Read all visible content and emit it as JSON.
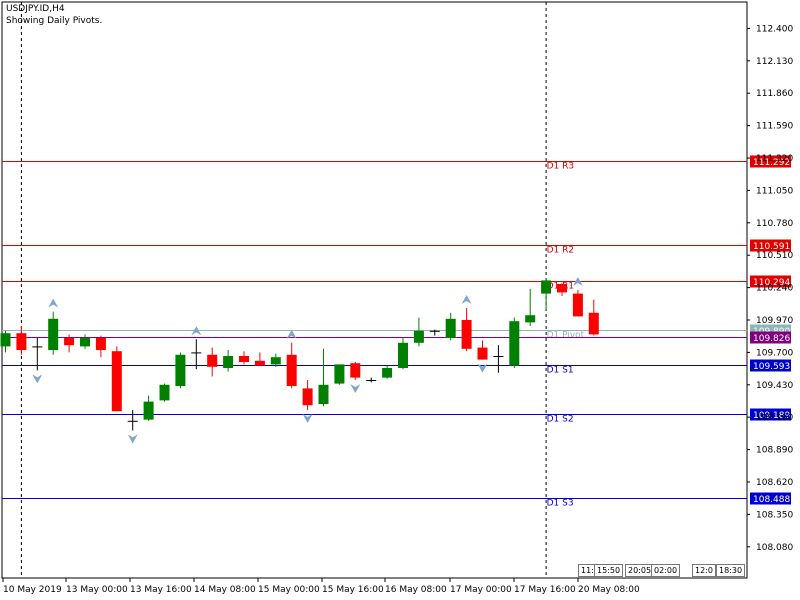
{
  "header": {
    "symbol": "USDJPY.ID,H4",
    "indicator": "Showing Daily Pivots."
  },
  "colors": {
    "bull": "#008000",
    "bear": "#ff0000",
    "resistance": "#e00000",
    "support": "#0000cc",
    "pivot": "#8fb5b5",
    "pivot2": "#800080",
    "arrow": "#7fa5c8"
  },
  "pivots": [
    {
      "name": "D1 R3",
      "value": 111.292,
      "label": "111.292",
      "kind": "resistance"
    },
    {
      "name": "D1 R2",
      "value": 110.591,
      "label": "110.591",
      "kind": "resistance"
    },
    {
      "name": "D1 R1",
      "value": 110.294,
      "label": "110.294",
      "kind": "resistance"
    },
    {
      "name": "D1 Pivot",
      "value": 109.89,
      "label": "109.890",
      "kind": "pivot"
    },
    {
      "name": "",
      "value": 109.826,
      "label": "109.826",
      "kind": "pivot2"
    },
    {
      "name": "D1 S1",
      "value": 109.593,
      "label": "109.593",
      "kind": "support"
    },
    {
      "name": "D1 S2",
      "value": 109.189,
      "label": "109.189",
      "kind": "support"
    },
    {
      "name": "D1 S3",
      "value": 108.488,
      "label": "108.488",
      "kind": "support"
    }
  ],
  "chart_data": {
    "type": "candlestick",
    "title": "USDJPY.ID,H4",
    "ylim": [
      107.82,
      112.62
    ],
    "yticks": [
      "112.400",
      "112.130",
      "111.860",
      "111.590",
      "111.320",
      "111.050",
      "110.780",
      "110.510",
      "110.240",
      "109.970",
      "109.700",
      "109.430",
      "109.160",
      "108.890",
      "108.620",
      "108.350",
      "108.080"
    ],
    "xticks": [
      "10 May 2019",
      "13 May 00:00",
      "13 May 16:00",
      "14 May 08:00",
      "15 May 00:00",
      "15 May 16:00",
      "16 May 08:00",
      "17 May 00:00",
      "17 May 16:00",
      "20 May 08:00"
    ],
    "candles": [
      {
        "o": 109.75,
        "h": 109.88,
        "l": 109.7,
        "c": 109.86
      },
      {
        "o": 109.86,
        "h": 109.92,
        "l": 109.68,
        "c": 109.72
      },
      {
        "o": 109.74,
        "h": 109.82,
        "l": 109.55,
        "c": 109.75
      },
      {
        "o": 109.72,
        "h": 110.04,
        "l": 109.68,
        "c": 109.98
      },
      {
        "o": 109.82,
        "h": 109.85,
        "l": 109.7,
        "c": 109.76
      },
      {
        "o": 109.75,
        "h": 109.85,
        "l": 109.73,
        "c": 109.82
      },
      {
        "o": 109.82,
        "h": 109.84,
        "l": 109.66,
        "c": 109.72
      },
      {
        "o": 109.71,
        "h": 109.75,
        "l": 109.22,
        "c": 109.21
      },
      {
        "o": 109.11,
        "h": 109.22,
        "l": 109.05,
        "c": 109.13
      },
      {
        "o": 109.14,
        "h": 109.34,
        "l": 109.13,
        "c": 109.29
      },
      {
        "o": 109.3,
        "h": 109.44,
        "l": 109.29,
        "c": 109.43
      },
      {
        "o": 109.42,
        "h": 109.7,
        "l": 109.4,
        "c": 109.68
      },
      {
        "o": 109.69,
        "h": 109.81,
        "l": 109.56,
        "c": 109.7
      },
      {
        "o": 109.68,
        "h": 109.74,
        "l": 109.5,
        "c": 109.58
      },
      {
        "o": 109.57,
        "h": 109.72,
        "l": 109.54,
        "c": 109.67
      },
      {
        "o": 109.67,
        "h": 109.71,
        "l": 109.6,
        "c": 109.62
      },
      {
        "o": 109.63,
        "h": 109.7,
        "l": 109.6,
        "c": 109.59
      },
      {
        "o": 109.6,
        "h": 109.69,
        "l": 109.58,
        "c": 109.66
      },
      {
        "o": 109.68,
        "h": 109.78,
        "l": 109.4,
        "c": 109.42
      },
      {
        "o": 109.4,
        "h": 109.47,
        "l": 109.22,
        "c": 109.26
      },
      {
        "o": 109.27,
        "h": 109.73,
        "l": 109.25,
        "c": 109.43
      },
      {
        "o": 109.44,
        "h": 109.6,
        "l": 109.43,
        "c": 109.6
      },
      {
        "o": 109.61,
        "h": 109.62,
        "l": 109.47,
        "c": 109.49
      },
      {
        "o": 109.46,
        "h": 109.49,
        "l": 109.45,
        "c": 109.47
      },
      {
        "o": 109.49,
        "h": 109.59,
        "l": 109.48,
        "c": 109.57
      },
      {
        "o": 109.57,
        "h": 109.82,
        "l": 109.56,
        "c": 109.78
      },
      {
        "o": 109.78,
        "h": 109.99,
        "l": 109.75,
        "c": 109.88
      },
      {
        "o": 109.86,
        "h": 109.89,
        "l": 109.84,
        "c": 109.88
      },
      {
        "o": 109.82,
        "h": 110.03,
        "l": 109.8,
        "c": 109.98
      },
      {
        "o": 109.97,
        "h": 110.07,
        "l": 109.71,
        "c": 109.73
      },
      {
        "o": 109.74,
        "h": 109.8,
        "l": 109.64,
        "c": 109.64
      },
      {
        "o": 109.67,
        "h": 109.76,
        "l": 109.53,
        "c": 109.66
      },
      {
        "o": 109.59,
        "h": 109.99,
        "l": 109.57,
        "c": 109.96
      },
      {
        "o": 109.95,
        "h": 110.23,
        "l": 109.92,
        "c": 110.01
      },
      {
        "o": 110.19,
        "h": 110.31,
        "l": 110.05,
        "c": 110.3
      },
      {
        "o": 110.27,
        "h": 110.28,
        "l": 110.17,
        "c": 110.2
      },
      {
        "o": 110.19,
        "h": 110.22,
        "l": 110.02,
        "c": 110.0
      },
      {
        "o": 110.03,
        "h": 110.14,
        "l": 109.84,
        "c": 109.85
      }
    ],
    "fractals_up": [
      3,
      12,
      18,
      29,
      36
    ],
    "fractals_down": [
      2,
      8,
      19,
      22,
      30
    ],
    "session_separators": [
      1,
      34
    ],
    "time_badges": [
      "11:",
      "15:50",
      "20:05",
      "02:00",
      "12:0",
      "18:30"
    ]
  }
}
